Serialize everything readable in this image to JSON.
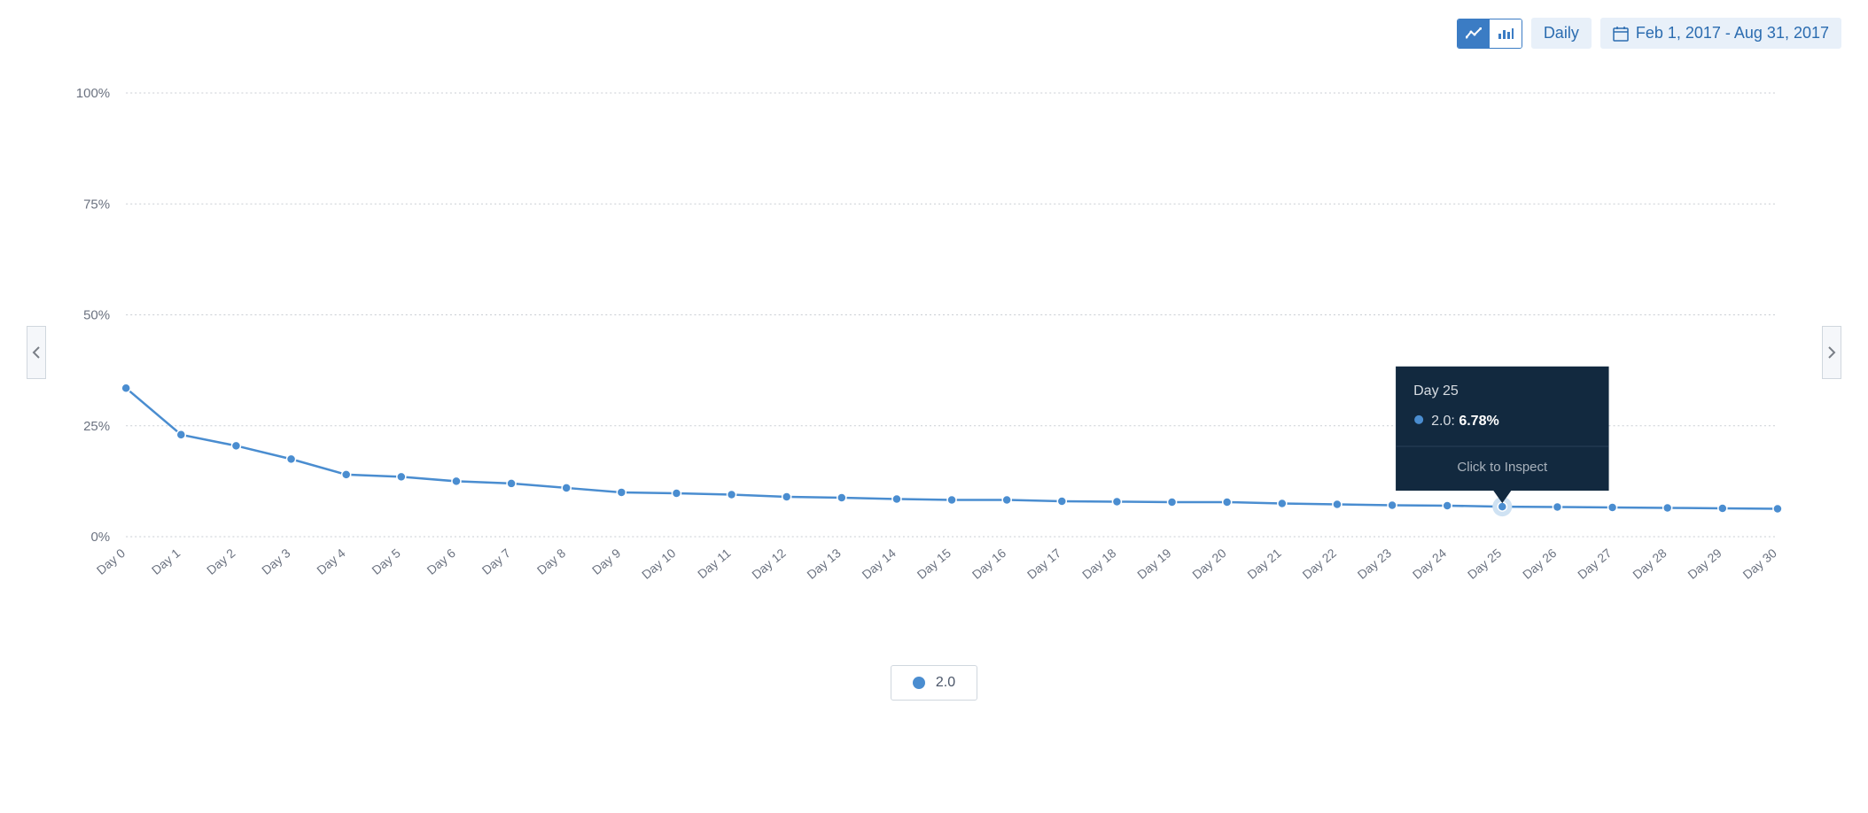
{
  "toolbar": {
    "chart_type_active": "line",
    "granularity_label": "Daily",
    "date_range_label": "Feb 1, 2017 - Aug 31, 2017",
    "toggle_bg_active": "#3b7cc4",
    "toggle_fg_active": "#ffffff",
    "pill_bg": "#e8f0f9",
    "pill_fg": "#2b6cb0"
  },
  "chart": {
    "type": "line",
    "background_color": "#ffffff",
    "grid_color": "#c9cdd3",
    "line_color": "#4a8dd0",
    "marker_color": "#4a8dd0",
    "marker_radius": 5,
    "highlight_ring_color": "#cfe2f3",
    "ylim": [
      0,
      100
    ],
    "ytick_step": 25,
    "yticks": [
      "0%",
      "25%",
      "50%",
      "75%",
      "100%"
    ],
    "x_labels": [
      "Day 0",
      "Day 1",
      "Day 2",
      "Day 3",
      "Day 4",
      "Day 5",
      "Day 6",
      "Day 7",
      "Day 8",
      "Day 9",
      "Day 10",
      "Day 11",
      "Day 12",
      "Day 13",
      "Day 14",
      "Day 15",
      "Day 16",
      "Day 17",
      "Day 18",
      "Day 19",
      "Day 20",
      "Day 21",
      "Day 22",
      "Day 23",
      "Day 24",
      "Day 25",
      "Day 26",
      "Day 27",
      "Day 28",
      "Day 29",
      "Day 30"
    ],
    "series": [
      {
        "name": "2.0",
        "color": "#4a8dd0",
        "values": [
          33.5,
          23.0,
          20.5,
          17.5,
          14.0,
          13.5,
          12.5,
          12.0,
          11.0,
          10.0,
          9.8,
          9.5,
          9.0,
          8.8,
          8.5,
          8.3,
          8.3,
          8.0,
          7.9,
          7.8,
          7.8,
          7.5,
          7.3,
          7.1,
          7.0,
          6.78,
          6.7,
          6.6,
          6.5,
          6.4,
          6.3
        ]
      }
    ],
    "hover_index": 25,
    "tooltip": {
      "title": "Day 25",
      "series_label": "2.0:",
      "value_label": "6.78%",
      "hint": "Click to Inspect",
      "bg": "#12293f",
      "dot_color": "#4a8dd0"
    }
  },
  "legend": {
    "items": [
      {
        "label": "2.0",
        "color": "#4a8dd0"
      }
    ]
  }
}
